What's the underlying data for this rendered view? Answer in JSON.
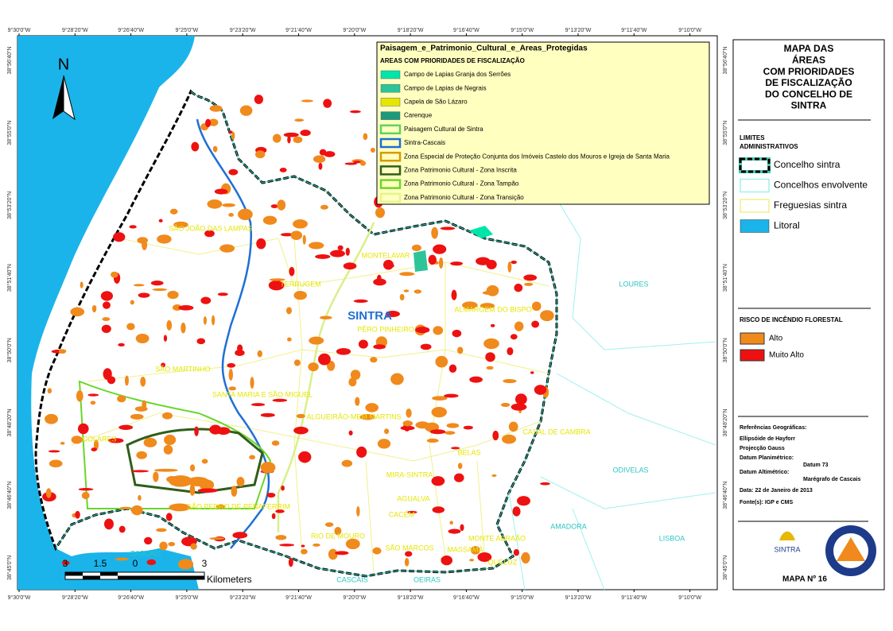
{
  "coordinates": {
    "longitudes": [
      "9°30'0\"W",
      "9°28'20\"W",
      "9°26'40\"W",
      "9°25'0\"W",
      "9°23'20\"W",
      "9°21'40\"W",
      "9°20'0\"W",
      "9°18'20\"W",
      "9°16'40\"W",
      "9°15'0\"W",
      "9°13'20\"W",
      "9°11'40\"W",
      "9°10'0\"W"
    ],
    "latitudes": [
      "38°56'40\"N",
      "38°55'0\"N",
      "38°53'20\"N",
      "38°51'40\"N",
      "38°50'0\"N",
      "38°48'20\"N",
      "38°46'40\"N",
      "38°45'0\"N"
    ]
  },
  "legend": {
    "title": "Paisagem_e_Patrimonio_Cultural_e_Areas_Protegidas",
    "subtitle": "AREAS COM PRIORIDADES DE FISCALIZAÇÃO",
    "items": [
      {
        "label": "Campo de Lapias Granja dos Serrões",
        "color": "#00e6a9",
        "style": "fill"
      },
      {
        "label": "Campo de Lapias de Negrais",
        "color": "#2dc49a",
        "style": "fill"
      },
      {
        "label": "Capela de São Lázaro",
        "color": "#e6e600",
        "style": "fill"
      },
      {
        "label": "Carenque",
        "color": "#1a9a7a",
        "style": "fill"
      },
      {
        "label": "Paisagem Cultural de Sintra",
        "color": "#5fd35f",
        "style": "outline"
      },
      {
        "label": "Sintra-Cascais",
        "color": "#1f6fd6",
        "style": "outline"
      },
      {
        "label": "Zona Especial de Proteção Conjunta dos Imóveis Castelo dos Mouros e Igreja de Santa Maria",
        "color": "#d89a00",
        "style": "outline"
      },
      {
        "label": "Zona Patrimonio Cultural - Zona Inscrita",
        "color": "#2f5e1a",
        "style": "outline"
      },
      {
        "label": "Zona Patrimonio Cultural - Zona Tampão",
        "color": "#6ad62a",
        "style": "outline"
      },
      {
        "label": "Zona Patrimonio Cultural - Zona Transição",
        "color": "#e6f58f",
        "style": "outline"
      }
    ]
  },
  "place_labels": [
    {
      "label": "SÃO JOÃO DAS LAMPAS",
      "color": "#e6e600"
    },
    {
      "label": "TERRUGEM",
      "color": "#e6e600"
    },
    {
      "label": "MONTELAVAR",
      "color": "#e6e600"
    },
    {
      "label": "SINTRA",
      "color": "#1f6fd6"
    },
    {
      "label": "PÊRO PINHEIRO",
      "color": "#e6e600"
    },
    {
      "label": "ALMARGEM DO BISPO",
      "color": "#e6e600"
    },
    {
      "label": "SÃO MARTINHO",
      "color": "#e6e600"
    },
    {
      "label": "SANTA MARIA E SÃO MIGUEL",
      "color": "#e6e600"
    },
    {
      "label": "ALGUEIRÃO-MEM MARTINS",
      "color": "#e6e600"
    },
    {
      "label": "CASAL DE CAMBRA",
      "color": "#e6e600"
    },
    {
      "label": "COLARES",
      "color": "#e6e600"
    },
    {
      "label": "SÃO PEDRO DE PENAFERRIM",
      "color": "#e6e600"
    },
    {
      "label": "MIRA-SINTRA",
      "color": "#e6e600"
    },
    {
      "label": "BELAS",
      "color": "#e6e600"
    },
    {
      "label": "AGUALVA",
      "color": "#e6e600"
    },
    {
      "label": "CACÉM",
      "color": "#e6e600"
    },
    {
      "label": "RIO DE MOURO",
      "color": "#e6e600"
    },
    {
      "label": "SÃO MARCOS",
      "color": "#e6e600"
    },
    {
      "label": "MASSAMÁ",
      "color": "#e6e600"
    },
    {
      "label": "MONTE ABRAÃO",
      "color": "#e6e600"
    },
    {
      "label": "QUELUZ",
      "color": "#e6e600"
    },
    {
      "label": "LOURES",
      "color": "#2ec4c4"
    },
    {
      "label": "ODIVELAS",
      "color": "#2ec4c4"
    },
    {
      "label": "AMADORA",
      "color": "#2ec4c4"
    },
    {
      "label": "LISBOA",
      "color": "#2ec4c4"
    },
    {
      "label": "CASCAIS",
      "color": "#2ec4c4"
    },
    {
      "label": "CASCAIS",
      "color": "#2ec4c4"
    },
    {
      "label": "OEIRAS",
      "color": "#2ec4c4"
    }
  ],
  "north_arrow": "N",
  "scale_bar": {
    "labels": [
      "3",
      "1.5",
      "0",
      "3"
    ],
    "unit": "Kilometers"
  },
  "panel": {
    "title": [
      "MAPA DAS",
      "ÁREAS",
      "COM PRIORIDADES",
      "DE FISCALIZAÇÃO",
      "DO CONCELHO DE",
      "SINTRA"
    ],
    "limits_title": [
      "LIMITES",
      "ADMINISTRATIVOS"
    ],
    "limits": [
      {
        "label": "Concelho sintra",
        "color": "#000000",
        "style": "dashed"
      },
      {
        "label": "Concelhos envolvente",
        "color": "#9ff0f0",
        "style": "outline"
      },
      {
        "label": "Freguesias sintra",
        "color": "#f0f08a",
        "style": "outline"
      },
      {
        "label": "Litoral",
        "color": "#1ab4ea",
        "style": "fill"
      }
    ],
    "risk_title": "RISCO DE INCÊNDIO FLORESTAL",
    "risk": [
      {
        "label": "Alto",
        "color": "#f08a1c"
      },
      {
        "label": "Muito Alto",
        "color": "#ee1111"
      }
    ],
    "references": [
      "Referências Geográficas:",
      "Ellipsóide de Hayforr",
      "Projecção Gauss",
      "Datum Planimétrico:",
      "Datum 73",
      "Datum Altimétrico:",
      "Marégrafo de Cascais",
      "Data: 22 de Janeiro de 2013",
      "Fonte(s): IGP e CMS"
    ],
    "logo": "SINTRA",
    "map_number": "MAPA Nº 16"
  }
}
